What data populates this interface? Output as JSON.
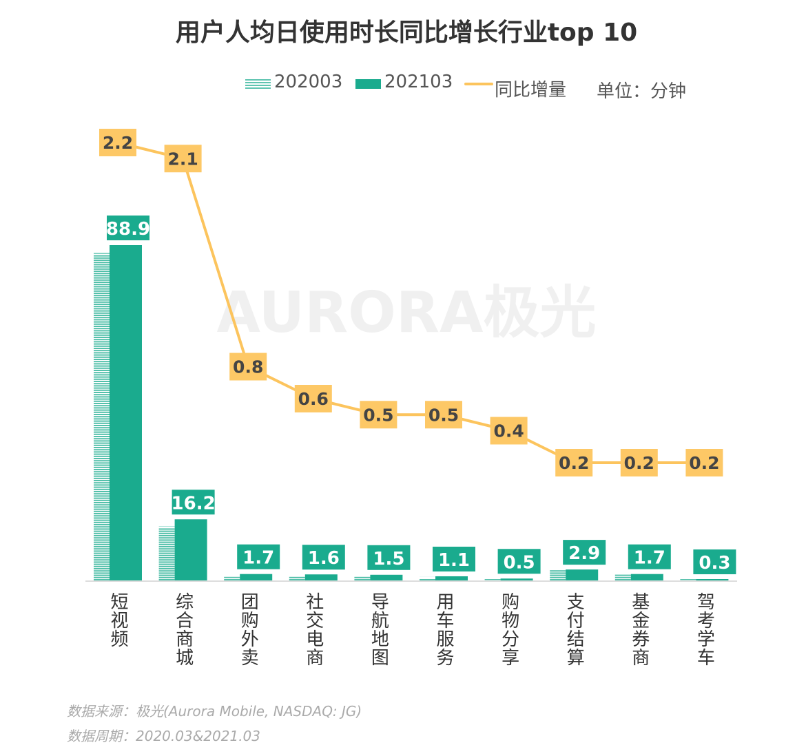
{
  "chart_data": {
    "type": "bar",
    "title": "用户人均日使用时长同比增长行业top 10",
    "unit_label": "单位：分钟",
    "categories": [
      "短视频",
      "综合商城",
      "团购外卖",
      "社交电商",
      "导航地图",
      "用车服务",
      "购物分享",
      "支付结算",
      "基金券商",
      "驾考学车"
    ],
    "series": [
      {
        "name": "202003",
        "kind": "bar",
        "pattern": "striped",
        "color": "#1aab8e",
        "values": [
          86.7,
          14.1,
          0.9,
          1.0,
          1.0,
          0.6,
          0.1,
          2.7,
          1.5,
          0.1
        ]
      },
      {
        "name": "202103",
        "kind": "bar",
        "color": "#1aab8e",
        "values": [
          88.9,
          16.2,
          1.7,
          1.6,
          1.5,
          1.1,
          0.5,
          2.9,
          1.7,
          0.3
        ],
        "data_labels": [
          "88.9",
          "16.2",
          "1.7",
          "1.6",
          "1.5",
          "1.1",
          "0.5",
          "2.9",
          "1.7",
          "0.3"
        ]
      },
      {
        "name": "同比增量",
        "kind": "line",
        "axis": "secondary",
        "color": "#fcc45d",
        "values": [
          2.2,
          2.1,
          0.8,
          0.6,
          0.5,
          0.5,
          0.4,
          0.2,
          0.2,
          0.2
        ],
        "data_labels": [
          "2.2",
          "2.1",
          "0.8",
          "0.6",
          "0.5",
          "0.5",
          "0.4",
          "0.2",
          "0.2",
          "0.2"
        ]
      }
    ],
    "ylim": [
      0,
      90
    ],
    "y2lim": [
      0,
      2.2
    ],
    "grid": false,
    "legend_placement": "top-right"
  },
  "watermark": "AURORA极光",
  "footer": {
    "source": "数据来源：极光(Aurora Mobile, NASDAQ: JG)",
    "period": "数据周期：2020.03&2021.03"
  }
}
